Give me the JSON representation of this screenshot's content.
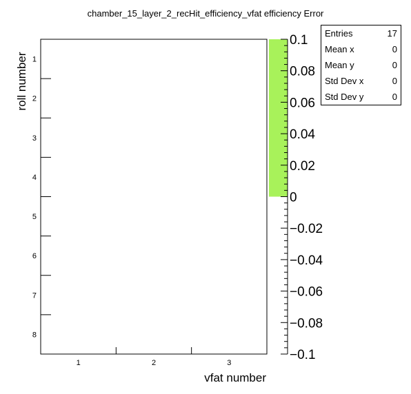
{
  "chart_data": {
    "type": "heatmap",
    "title": "chamber_15_layer_2_recHit_efficiency_vfat efficiency Error",
    "xlabel": "vfat number",
    "ylabel": "roll number",
    "x_categories": [
      "1",
      "2",
      "3"
    ],
    "y_categories": [
      "1",
      "2",
      "3",
      "4",
      "5",
      "6",
      "7",
      "8"
    ],
    "cells": [],
    "zlim": [
      -0.1,
      0.1
    ],
    "z_ticks": [
      0.1,
      0.08,
      0.06,
      0.04,
      0.02,
      0,
      -0.02,
      -0.04,
      -0.06,
      -0.08,
      -0.1
    ],
    "z_tick_labels": [
      "0.1",
      "0.08",
      "0.06",
      "0.04",
      "0.02",
      "0",
      "−0.02",
      "−0.04",
      "−0.06",
      "−0.08",
      "−0.1"
    ],
    "palette_fill": {
      "from": 0,
      "to": 0.1,
      "color": "#a8f25a"
    },
    "stats": [
      {
        "key": "Entries",
        "value": "17"
      },
      {
        "key": "Mean x",
        "value": "0"
      },
      {
        "key": "Mean y",
        "value": "0"
      },
      {
        "key": "Std Dev x",
        "value": "0"
      },
      {
        "key": "Std Dev y",
        "value": "0"
      }
    ]
  }
}
